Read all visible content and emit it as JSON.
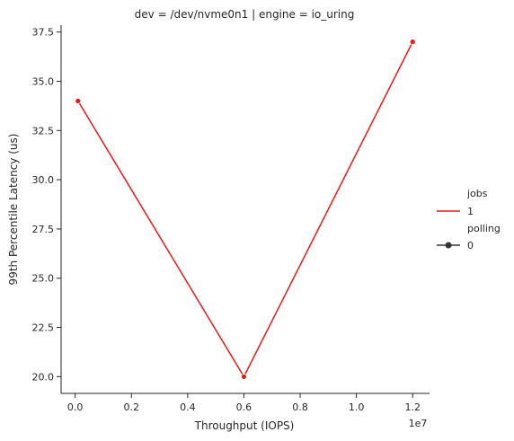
{
  "chart_data": {
    "type": "line",
    "title": "dev = /dev/nvme0n1 | engine = io_uring",
    "xlabel": "Throughput (IOPS)",
    "ylabel": "99th Percentile Latency (us)",
    "x_offset_label": "1e7",
    "xlim": [
      -0.05,
      1.26
    ],
    "ylim": [
      19.15,
      37.85
    ],
    "x_ticks": [
      0.0,
      0.2,
      0.4,
      0.6,
      0.8,
      1.0,
      1.2
    ],
    "x_tick_labels": [
      "0.0",
      "0.2",
      "0.4",
      "0.6",
      "0.8",
      "1.0",
      "1.2"
    ],
    "y_ticks": [
      20.0,
      22.5,
      25.0,
      27.5,
      30.0,
      32.5,
      35.0,
      37.5
    ],
    "y_tick_labels": [
      "20.0",
      "22.5",
      "25.0",
      "27.5",
      "30.0",
      "32.5",
      "35.0",
      "37.5"
    ],
    "series": [
      {
        "name": "1",
        "color": "#e41a1c",
        "x": [
          0.01,
          0.6,
          1.2
        ],
        "y": [
          34.0,
          20.0,
          37.0
        ]
      }
    ],
    "grid": false,
    "legend": {
      "placement": "right",
      "hue_title": "jobs",
      "hue_entry": "1",
      "style_title": "polling",
      "style_entry": "0",
      "hue_color": "#e41a1c",
      "style_color": "#333333"
    }
  }
}
